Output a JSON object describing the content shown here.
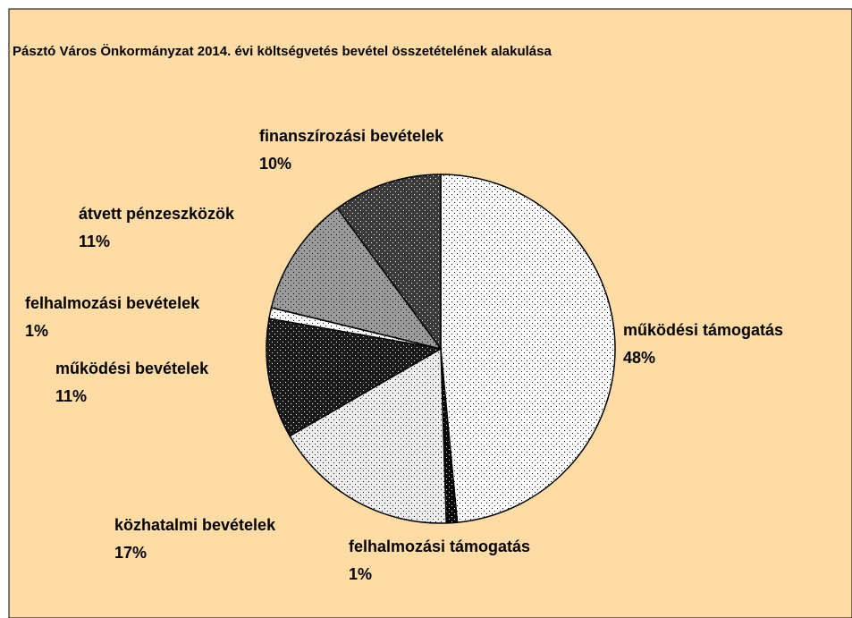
{
  "chart_data": {
    "type": "pie",
    "title": "Pásztó Város Önkormányzat 2014. évi költségvetés bevétel összetételének alakulása",
    "categories": [
      "működési támogatás",
      "felhalmozási támogatás",
      "közhatalmi bevételek",
      "működési bevételek",
      "felhalmozási bevételek",
      "átvett pénzeszközök",
      "finanszírozási bevételek"
    ],
    "values": [
      48,
      1,
      17,
      11,
      1,
      11,
      10
    ],
    "value_labels": [
      "48%",
      "1%",
      "17%",
      "11%",
      "1%",
      "11%",
      "10%"
    ],
    "colors": [
      "#ffffff",
      "#000000",
      "#ececec",
      "#1a1a1a",
      "#ffffff",
      "#9a9a9a",
      "#3a3a3a"
    ]
  }
}
